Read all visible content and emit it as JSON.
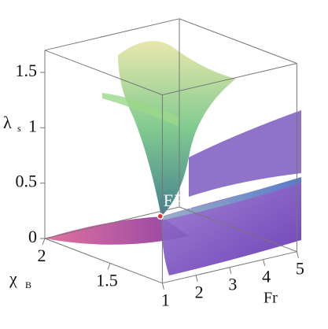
{
  "chart_data": {
    "type": "surface3d",
    "xlabel": "Fr",
    "ylabel": {
      "text": "χ",
      "sub": "B"
    },
    "zlabel": {
      "text": "λ",
      "sub": "s"
    },
    "xlim": [
      1,
      5
    ],
    "xticks": [
      1,
      2,
      3,
      4,
      5
    ],
    "ylim": [
      1.1,
      2
    ],
    "yticks": [
      2,
      1.5
    ],
    "zlim": [
      0,
      1.7
    ],
    "zticks": [
      0,
      0.5,
      1,
      1.5
    ],
    "points": [
      {
        "label": "EP",
        "sub": "4",
        "x": 4.2,
        "y": 1.94,
        "z": 0,
        "color": "#e03030"
      }
    ]
  }
}
